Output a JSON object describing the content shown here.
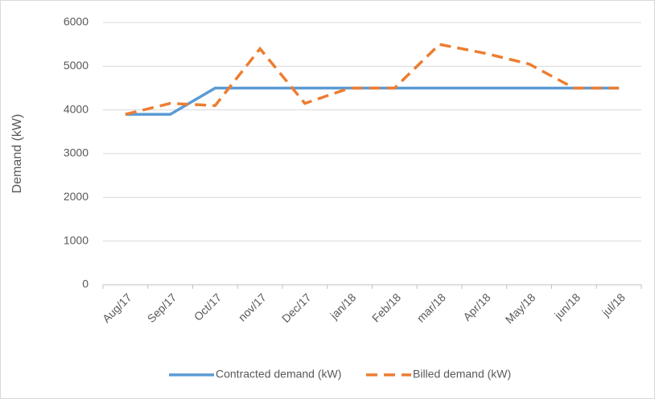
{
  "chart_data": {
    "type": "line",
    "y_label": "Demand (kW)",
    "categories": [
      "Aug/17",
      "Sep/17",
      "Oct/17",
      "nov/17",
      "Dec/17",
      "jan/18",
      "Feb/18",
      "mar/18",
      "Apr/18",
      "May/18",
      "jun/18",
      "jul/18"
    ],
    "series": [
      {
        "name": "Contracted demand (kW)",
        "color": "#5b9bd5",
        "dashed": false,
        "values": [
          3900,
          3900,
          4500,
          4500,
          4500,
          4500,
          4500,
          4500,
          4500,
          4500,
          4500,
          4500
        ]
      },
      {
        "name": "Billed demand (kW)",
        "color": "#ed7d31",
        "dashed": true,
        "values": [
          3900,
          4150,
          4100,
          5400,
          4150,
          4500,
          4500,
          5500,
          5300,
          5050,
          4500,
          4500
        ]
      }
    ],
    "ylim": [
      0,
      6000
    ],
    "yticks": [
      0,
      1000,
      2000,
      3000,
      4000,
      5000,
      6000
    ],
    "grid": true,
    "legend": "bottom"
  }
}
